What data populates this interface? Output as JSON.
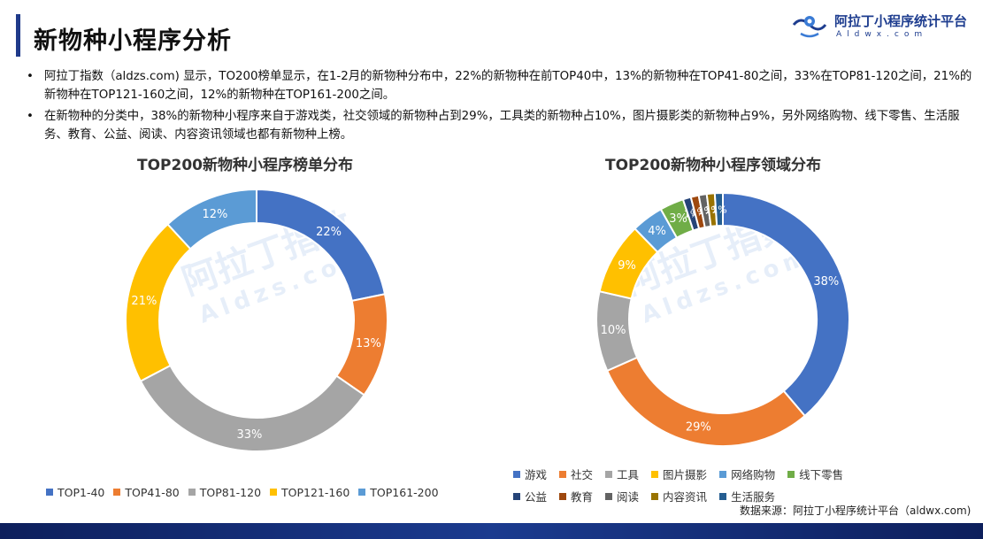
{
  "header": {
    "title": "新物种小程序分析",
    "brand_name": "阿拉丁小程序统计平台",
    "brand_domain": "Aldwx.com"
  },
  "bullets": [
    "阿拉丁指数（aldzs.com) 显示，TO200榜单显示，在1-2月的新物种分布中，22%的新物种在前TOP40中，13%的新物种在TOP41-80之间，33%在TOP81-120之间，21%的新物种在TOP121-160之间，12%的新物种在TOP161-200之间。",
    "在新物种的分类中，38%的新物种小程序来自于游戏类，社交领域的新物种占到29%，工具类的新物种占10%，图片摄影类的新物种占9%，另外网络购物、线下零售、生活服务、教育、公益、阅读、内容资讯领域也都有新物种上榜。"
  ],
  "watermark": {
    "text": "阿拉丁指数",
    "sub": "Aldzs.com"
  },
  "footer": {
    "source": "数据来源：阿拉丁小程序统计平台（aldwx.com)"
  },
  "chart_data": [
    {
      "type": "pie",
      "donut": true,
      "title": "TOP200新物种小程序榜单分布",
      "categories": [
        "TOP1-40",
        "TOP41-80",
        "TOP81-120",
        "TOP121-160",
        "TOP161-200"
      ],
      "values": [
        22,
        13,
        33,
        21,
        12
      ],
      "labels": [
        "22%",
        "13%",
        "33%",
        "21%",
        "12%"
      ],
      "colors": [
        "#4472c4",
        "#ed7d31",
        "#a5a5a5",
        "#ffc000",
        "#5b9bd5"
      ],
      "legend": "bottom"
    },
    {
      "type": "pie",
      "donut": true,
      "title": "TOP200新物种小程序领域分布",
      "categories": [
        "游戏",
        "社交",
        "工具",
        "图片摄影",
        "网络购物",
        "线下零售",
        "公益",
        "教育",
        "阅读",
        "内容资讯",
        "生活服务"
      ],
      "values": [
        38,
        29,
        10,
        9,
        4,
        3,
        1,
        1,
        1,
        1,
        1
      ],
      "labels": [
        "38%",
        "29%",
        "10%",
        "9%",
        "4%",
        "3%",
        "1%",
        "1%",
        "1%",
        "1%",
        "1%"
      ],
      "colors": [
        "#4472c4",
        "#ed7d31",
        "#a5a5a5",
        "#ffc000",
        "#5b9bd5",
        "#70ad47",
        "#264478",
        "#9e480e",
        "#636363",
        "#997300",
        "#255e91"
      ],
      "legend": "bottom"
    }
  ]
}
